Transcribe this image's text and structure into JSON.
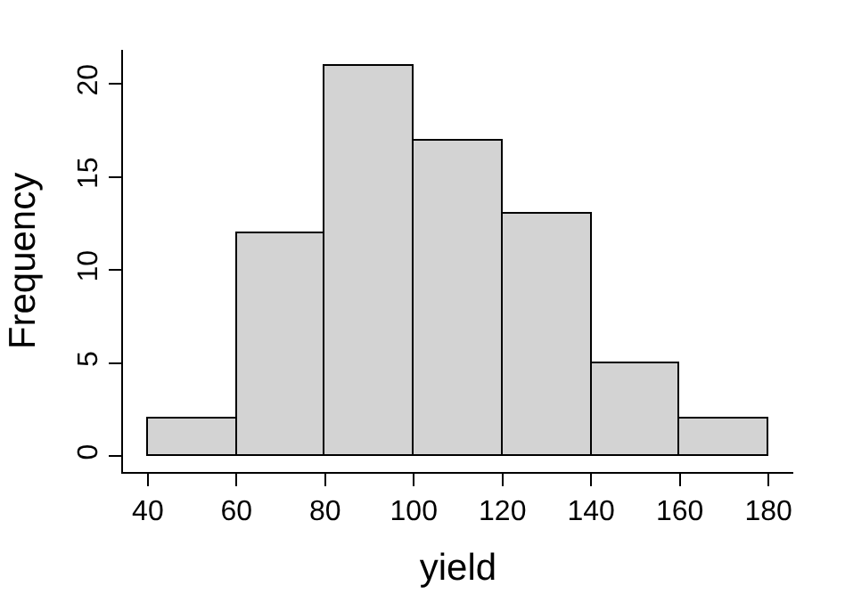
{
  "chart_data": {
    "type": "histogram",
    "xlabel": "yield",
    "ylabel": "Frequency",
    "bins": [
      40,
      60,
      80,
      100,
      120,
      140,
      160,
      180
    ],
    "values": [
      2,
      12,
      21,
      17,
      13,
      5,
      2
    ],
    "color": "#d3d3d3",
    "xlim": [
      34.4,
      185.6
    ],
    "xticks": [
      40,
      60,
      80,
      100,
      120,
      140,
      160,
      180
    ],
    "ylim": [
      -0.84,
      21.84
    ],
    "yticks": [
      0,
      5,
      10,
      15,
      20
    ],
    "legend": false
  }
}
